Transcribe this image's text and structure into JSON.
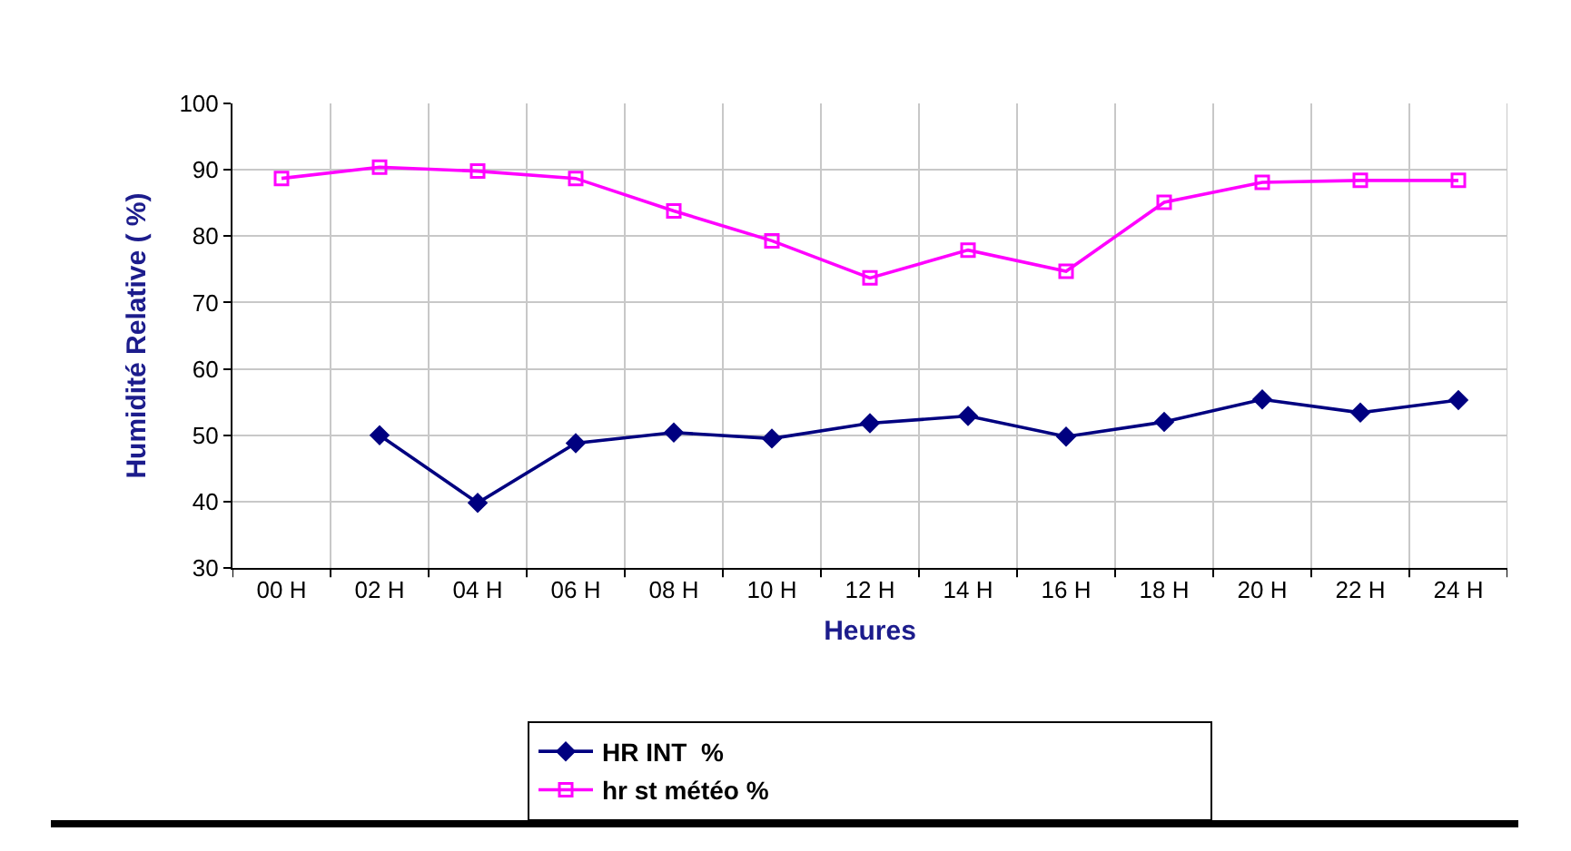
{
  "chart_data": {
    "type": "line",
    "xlabel": "Heures",
    "ylabel": "Humidité Relative ( %)",
    "categories": [
      "00 H",
      "02 H",
      "04 H",
      "06 H",
      "08 H",
      "10 H",
      "12 H",
      "14 H",
      "16 H",
      "18 H",
      "20 H",
      "22 H",
      "24 H"
    ],
    "series": [
      {
        "name": "HR INT  %",
        "color": "#000080",
        "marker": "diamond",
        "values": [
          null,
          50,
          39.8,
          48.8,
          50.4,
          49.5,
          51.8,
          52.9,
          49.8,
          52.0,
          55.4,
          53.4,
          55.3
        ]
      },
      {
        "name": "hr st météo %",
        "color": "#ff00ff",
        "marker": "square",
        "values": [
          88.7,
          90.4,
          89.8,
          88.7,
          83.8,
          79.3,
          73.7,
          77.9,
          74.7,
          85.1,
          88.1,
          88.4,
          88.4
        ]
      }
    ],
    "ylim": [
      30,
      100
    ],
    "yticks": [
      30,
      40,
      50,
      60,
      70,
      80,
      90,
      100
    ],
    "grid": true,
    "legend": "bottom"
  }
}
